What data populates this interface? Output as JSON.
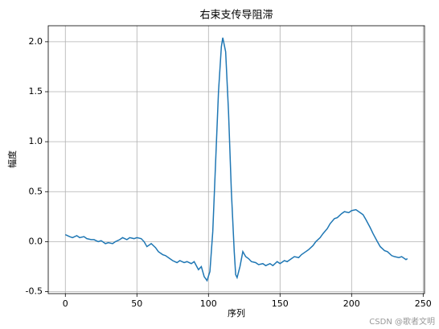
{
  "chart_data": {
    "type": "line",
    "title": "右束支传导阻滞",
    "x_label": "序列",
    "y_label": "幅度",
    "x": [
      0,
      3,
      5,
      8,
      10,
      13,
      15,
      18,
      20,
      23,
      25,
      28,
      30,
      33,
      35,
      38,
      40,
      43,
      45,
      48,
      50,
      53,
      55,
      57,
      60,
      63,
      65,
      68,
      70,
      73,
      75,
      78,
      80,
      83,
      85,
      88,
      90,
      93,
      95,
      97,
      99,
      101,
      103,
      105,
      107,
      109,
      110,
      112,
      114,
      116,
      118,
      119,
      120,
      122,
      124,
      126,
      128,
      130,
      133,
      135,
      138,
      140,
      143,
      145,
      148,
      150,
      153,
      155,
      158,
      160,
      163,
      165,
      168,
      170,
      173,
      175,
      178,
      180,
      183,
      185,
      188,
      190,
      193,
      195,
      198,
      200,
      203,
      205,
      208,
      210,
      213,
      215,
      218,
      220,
      223,
      225,
      228,
      230,
      233,
      235,
      238,
      239
    ],
    "series": [
      {
        "color": "#1f77b4",
        "values": [
          0.07,
          0.05,
          0.04,
          0.06,
          0.04,
          0.05,
          0.03,
          0.02,
          0.02,
          0.0,
          0.01,
          -0.02,
          -0.01,
          -0.02,
          0.0,
          0.02,
          0.04,
          0.02,
          0.04,
          0.03,
          0.04,
          0.03,
          0.0,
          -0.05,
          -0.02,
          -0.06,
          -0.1,
          -0.13,
          -0.14,
          -0.17,
          -0.19,
          -0.21,
          -0.19,
          -0.21,
          -0.2,
          -0.22,
          -0.2,
          -0.28,
          -0.25,
          -0.35,
          -0.39,
          -0.3,
          0.1,
          0.8,
          1.5,
          1.95,
          2.04,
          1.9,
          1.3,
          0.5,
          -0.1,
          -0.33,
          -0.36,
          -0.25,
          -0.1,
          -0.15,
          -0.17,
          -0.2,
          -0.21,
          -0.23,
          -0.22,
          -0.24,
          -0.22,
          -0.24,
          -0.2,
          -0.22,
          -0.19,
          -0.2,
          -0.17,
          -0.15,
          -0.16,
          -0.13,
          -0.1,
          -0.08,
          -0.04,
          0.0,
          0.04,
          0.08,
          0.13,
          0.18,
          0.23,
          0.24,
          0.28,
          0.3,
          0.29,
          0.31,
          0.32,
          0.3,
          0.27,
          0.22,
          0.14,
          0.08,
          0.0,
          -0.05,
          -0.09,
          -0.1,
          -0.14,
          -0.15,
          -0.16,
          -0.15,
          -0.18,
          -0.17
        ]
      }
    ],
    "xlim": [
      -11.95,
      250.95
    ],
    "ylim": [
      -0.52,
      2.16
    ],
    "xticks": [
      0,
      50,
      100,
      150,
      200,
      250
    ],
    "yticks": [
      -0.5,
      {
        "value": 0,
        "label": "0.0"
      },
      0.5,
      {
        "value": 1,
        "label": "1.0"
      },
      1.5,
      {
        "value": 2,
        "label": "2.0"
      }
    ],
    "grid": true,
    "watermark": "CSDN @歌者文明"
  }
}
